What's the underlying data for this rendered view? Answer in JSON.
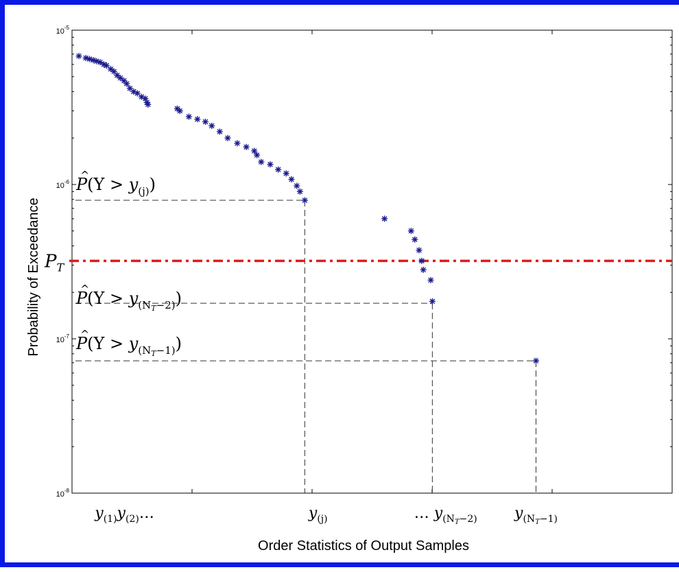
{
  "chart_data": {
    "type": "scatter",
    "xlabel": "Order Statistics of Output Samples",
    "ylabel": "Probability of Exceedance",
    "yscale": "log",
    "ylim": [
      1e-08,
      1e-05
    ],
    "xlim": [
      0,
      1
    ],
    "grid": false,
    "y_tick_labels": [
      {
        "base": "10",
        "exp": "-5",
        "value": 1e-05
      },
      {
        "base": "10",
        "exp": "-6",
        "value": 1e-06
      },
      {
        "base": "10",
        "exp": "-7",
        "value": 1e-07
      },
      {
        "base": "10",
        "exp": "-8",
        "value": 1e-08
      }
    ],
    "x_tick_labels": [
      {
        "text": "y(1)y(2)…",
        "base": "y",
        "sub": "(1)",
        "base2": "y",
        "sub2": "(2)",
        "suffix": "…",
        "x": 0.03
      },
      {
        "text": "y(j)",
        "base": "y",
        "sub": "(j)",
        "x": 0.45
      },
      {
        "text": "… y(NT−2)",
        "prefix": "…",
        "base": "y",
        "sub": "(N",
        "subsub": "T",
        "subtail": "−2)",
        "x": 0.69
      },
      {
        "text": "y(NT−1)",
        "base": "y",
        "sub": "(N",
        "subsub": "T",
        "subtail": "−1)",
        "x": 0.86
      }
    ],
    "series": [
      {
        "marker": "*",
        "color": "#1a1a8c",
        "points": [
          {
            "x": 0.0,
            "y": 6.8e-06
          },
          {
            "x": 0.013,
            "y": 6.6e-06
          },
          {
            "x": 0.02,
            "y": 6.5e-06
          },
          {
            "x": 0.027,
            "y": 6.4e-06
          },
          {
            "x": 0.033,
            "y": 6.3e-06
          },
          {
            "x": 0.04,
            "y": 6.2e-06
          },
          {
            "x": 0.047,
            "y": 6e-06
          },
          {
            "x": 0.052,
            "y": 5.9e-06
          },
          {
            "x": 0.06,
            "y": 5.6e-06
          },
          {
            "x": 0.066,
            "y": 5.4e-06
          },
          {
            "x": 0.072,
            "y": 5.1e-06
          },
          {
            "x": 0.078,
            "y": 4.9e-06
          },
          {
            "x": 0.085,
            "y": 4.7e-06
          },
          {
            "x": 0.09,
            "y": 4.5e-06
          },
          {
            "x": 0.096,
            "y": 4.2e-06
          },
          {
            "x": 0.103,
            "y": 4e-06
          },
          {
            "x": 0.11,
            "y": 3.9e-06
          },
          {
            "x": 0.118,
            "y": 3.7e-06
          },
          {
            "x": 0.125,
            "y": 3.6e-06
          },
          {
            "x": 0.128,
            "y": 3.4e-06
          },
          {
            "x": 0.13,
            "y": 3.3e-06
          },
          {
            "x": 0.185,
            "y": 3.1e-06
          },
          {
            "x": 0.19,
            "y": 3e-06
          },
          {
            "x": 0.207,
            "y": 2.75e-06
          },
          {
            "x": 0.223,
            "y": 2.65e-06
          },
          {
            "x": 0.238,
            "y": 2.55e-06
          },
          {
            "x": 0.25,
            "y": 2.4e-06
          },
          {
            "x": 0.265,
            "y": 2.2e-06
          },
          {
            "x": 0.28,
            "y": 2e-06
          },
          {
            "x": 0.298,
            "y": 1.85e-06
          },
          {
            "x": 0.315,
            "y": 1.75e-06
          },
          {
            "x": 0.33,
            "y": 1.65e-06
          },
          {
            "x": 0.335,
            "y": 1.55e-06
          },
          {
            "x": 0.343,
            "y": 1.4e-06
          },
          {
            "x": 0.36,
            "y": 1.35e-06
          },
          {
            "x": 0.375,
            "y": 1.25e-06
          },
          {
            "x": 0.39,
            "y": 1.18e-06
          },
          {
            "x": 0.4,
            "y": 1.08e-06
          },
          {
            "x": 0.41,
            "y": 9.8e-07
          },
          {
            "x": 0.416,
            "y": 9e-07
          },
          {
            "x": 0.425,
            "y": 7.9e-07
          },
          {
            "x": 0.575,
            "y": 6e-07
          },
          {
            "x": 0.625,
            "y": 5e-07
          },
          {
            "x": 0.632,
            "y": 4.4e-07
          },
          {
            "x": 0.64,
            "y": 3.75e-07
          },
          {
            "x": 0.645,
            "y": 3.2e-07
          },
          {
            "x": 0.648,
            "y": 2.8e-07
          },
          {
            "x": 0.662,
            "y": 2.4e-07
          },
          {
            "x": 0.665,
            "y": 1.75e-07
          },
          {
            "x": 0.86,
            "y": 7.2e-08
          }
        ]
      }
    ],
    "threshold": {
      "value": 3.2e-07,
      "color": "#e21a1a",
      "label": "P",
      "label_sub": "T",
      "style": "dash-dot"
    },
    "reference_lines": [
      {
        "x": 0.425,
        "y": 7.9e-07,
        "label": "P̂(Y > y(j))",
        "label_parts": {
          "hat": "P",
          "mid": "(Y > ",
          "base": "y",
          "sub": "(j)",
          "tail": ")"
        }
      },
      {
        "x": 0.665,
        "y": 1.7e-07,
        "label": "P̂(Y > y(NT−2))",
        "label_parts": {
          "hat": "P",
          "mid": "(Y > ",
          "base": "y",
          "sub": "(N",
          "subsub": "T",
          "subtail": "−2)",
          "tail": ")"
        }
      },
      {
        "x": 0.86,
        "y": 7.2e-08,
        "label": "P̂(Y > y(NT−1))",
        "label_parts": {
          "hat": "P",
          "mid": "(Y > ",
          "base": "y",
          "sub": "(N",
          "subsub": "T",
          "subtail": "−1)",
          "tail": ")"
        }
      }
    ]
  }
}
